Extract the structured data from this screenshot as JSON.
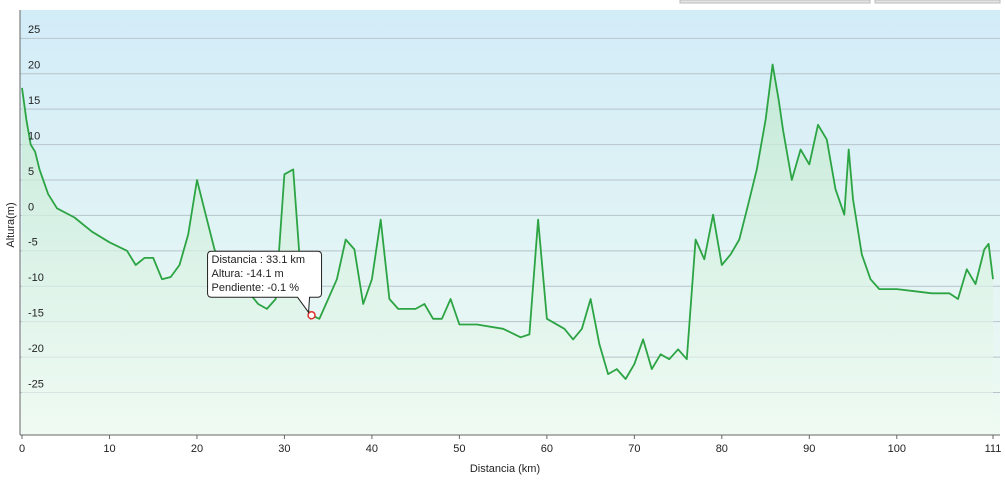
{
  "chart_data": {
    "type": "line",
    "xlabel": "Distancia  (km)",
    "ylabel": "Altura(m)",
    "x": [
      0,
      0.5,
      1,
      1.5,
      2,
      3,
      4,
      6,
      8,
      10,
      12,
      13,
      14,
      15,
      16,
      17,
      18,
      19,
      20,
      21,
      22,
      23,
      24,
      25,
      26,
      27,
      28,
      29,
      30,
      31,
      32,
      33,
      33.1,
      34,
      35,
      36,
      37,
      38,
      39,
      40,
      41,
      42,
      43,
      45,
      46,
      47,
      48,
      49,
      50,
      52,
      55,
      57,
      58,
      59,
      60,
      62,
      63,
      64,
      65,
      66,
      67,
      68,
      69,
      70,
      71,
      72,
      73,
      74,
      75,
      76,
      77,
      78,
      79,
      80,
      81,
      82,
      83,
      84,
      85,
      85.8,
      86.5,
      87,
      88,
      89,
      90,
      91,
      92,
      93,
      94,
      94.5,
      95,
      96,
      97,
      98,
      100,
      102,
      104,
      106,
      107,
      108,
      109,
      110,
      110.5,
      111
    ],
    "series": [
      {
        "name": "Altura",
        "color": "#2ca444",
        "values": [
          18,
          13.5,
          10,
          9,
          6.5,
          3,
          1,
          -0.3,
          -2.3,
          -3.8,
          -5,
          -7,
          -6,
          -6,
          -9,
          -8.7,
          -7,
          -2.7,
          5,
          0.1,
          -4.8,
          -7,
          -9,
          -10.4,
          -11,
          -12.5,
          -13.2,
          -11.8,
          5.8,
          6.5,
          -10.4,
          -14.6,
          -14.1,
          -14.6,
          -11.8,
          -9,
          -3.4,
          -4.8,
          -12.5,
          -9,
          -0.6,
          -11.8,
          -13.2,
          -13.2,
          -12.5,
          -14.6,
          -14.6,
          -11.8,
          -15.4,
          -15.4,
          -16,
          -17.2,
          -16.8,
          -0.6,
          -14.6,
          -16,
          -17.5,
          -16,
          -11.8,
          -18.2,
          -22.4,
          -21.7,
          -23.1,
          -21,
          -17.5,
          -21.7,
          -19.6,
          -20.3,
          -18.9,
          -20.3,
          -3.4,
          -6.2,
          0.1,
          -7,
          -5.5,
          -3.4,
          1.5,
          6.5,
          13.5,
          21.3,
          16.3,
          12,
          5,
          9.3,
          7.2,
          12.8,
          10.7,
          3.7,
          0.1,
          9.3,
          2.3,
          -5.5,
          -9,
          -10.4,
          -10.4,
          -10.7,
          -11,
          -11,
          -11.8,
          -7.6,
          -9.7,
          -4.8,
          -4,
          -9
        ]
      }
    ],
    "xlim": [
      0,
      111.8
    ],
    "xticks": [
      0,
      10,
      20,
      30,
      40,
      50,
      60,
      70,
      80,
      90,
      100,
      111
    ],
    "ylim": [
      -31,
      29
    ],
    "yticks": [
      -25,
      -20,
      -15,
      -10,
      -5,
      0,
      5,
      10,
      15,
      20,
      25
    ],
    "grid": true,
    "marker": {
      "x": 33.1,
      "y": -14.1,
      "color": "#e03030"
    },
    "tooltip": [
      "Distancia : 33.1 km",
      "Altura: -14.1 m",
      "Pendiente: -0.1 %"
    ]
  }
}
